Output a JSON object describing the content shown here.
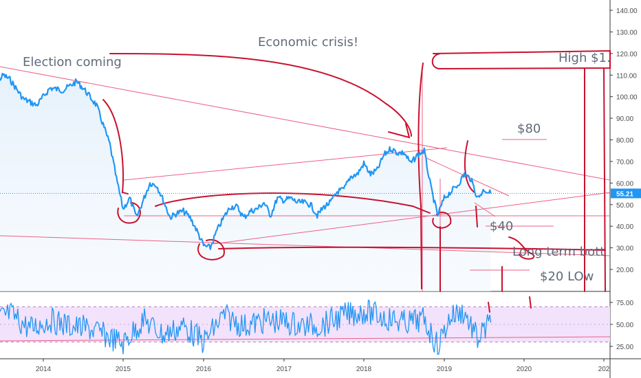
{
  "chart_data": [
    {
      "type": "line",
      "panel": "price",
      "ylim": [
        10,
        145
      ],
      "y_ticks": [
        "140.00",
        "130.00",
        "120.00",
        "110.00",
        "100.00",
        "90.00",
        "80.00",
        "70.00",
        "60.00",
        "50.00",
        "40.00",
        "30.00",
        "20.00"
      ],
      "x_ticks": [
        "2014",
        "2015",
        "2016",
        "2017",
        "2018",
        "2019",
        "2020",
        "202"
      ],
      "last_price_label": "55.21",
      "last_price": 55.21,
      "series": [
        {
          "color": "#2196f3",
          "points": [
            [
              "2013-05",
              103
            ],
            [
              "2013-07",
              110
            ],
            [
              "2013-08",
              108
            ],
            [
              "2013-10",
              99
            ],
            [
              "2013-12",
              96
            ],
            [
              "2014-02",
              104
            ],
            [
              "2014-04",
              103
            ],
            [
              "2014-06",
              107
            ],
            [
              "2014-07",
              104
            ],
            [
              "2014-09",
              96
            ],
            [
              "2014-10",
              87
            ],
            [
              "2014-11",
              78
            ],
            [
              "2014-12",
              62
            ],
            [
              "2015-01",
              48
            ],
            [
              "2015-02",
              53
            ],
            [
              "2015-03",
              44
            ],
            [
              "2015-04",
              52
            ],
            [
              "2015-05",
              60
            ],
            [
              "2015-06",
              59
            ],
            [
              "2015-07",
              52
            ],
            [
              "2015-08",
              44
            ],
            [
              "2015-09",
              46
            ],
            [
              "2015-10",
              47
            ],
            [
              "2015-11",
              44
            ],
            [
              "2015-12",
              38
            ],
            [
              "2016-01",
              31
            ],
            [
              "2016-02",
              30
            ],
            [
              "2016-03",
              38
            ],
            [
              "2016-04",
              44
            ],
            [
              "2016-05",
              49
            ],
            [
              "2016-06",
              49
            ],
            [
              "2016-07",
              44
            ],
            [
              "2016-08",
              47
            ],
            [
              "2016-09",
              48
            ],
            [
              "2016-10",
              51
            ],
            [
              "2016-11",
              45
            ],
            [
              "2016-12",
              53
            ],
            [
              "2017-01",
              52
            ],
            [
              "2017-02",
              53
            ],
            [
              "2017-03",
              51
            ],
            [
              "2017-04",
              51
            ],
            [
              "2017-05",
              50
            ],
            [
              "2017-06",
              45
            ],
            [
              "2017-07",
              49
            ],
            [
              "2017-08",
              51
            ],
            [
              "2017-09",
              56
            ],
            [
              "2017-10",
              57
            ],
            [
              "2017-11",
              63
            ],
            [
              "2017-12",
              64
            ],
            [
              "2018-01",
              69
            ],
            [
              "2018-02",
              64
            ],
            [
              "2018-03",
              66
            ],
            [
              "2018-04",
              73
            ],
            [
              "2018-05",
              76
            ],
            [
              "2018-06",
              74
            ],
            [
              "2018-07",
              74
            ],
            [
              "2018-08",
              69
            ],
            [
              "2018-09",
              73
            ],
            [
              "2018-10",
              75
            ],
            [
              "2018-11",
              58
            ],
            [
              "2018-12",
              45
            ],
            [
              "2019-01",
              53
            ],
            [
              "2019-02",
              56
            ],
            [
              "2019-03",
              59
            ],
            [
              "2019-04",
              64
            ],
            [
              "2019-05",
              62
            ],
            [
              "2019-06",
              53
            ],
            [
              "2019-07",
              57
            ],
            [
              "2019-08",
              55.21
            ]
          ]
        }
      ],
      "annotations": [
        {
          "text": "Election coming"
        },
        {
          "text": "Economic crisis!"
        },
        {
          "text": "High $1."
        },
        {
          "text": "$80"
        },
        {
          "text": "$40"
        },
        {
          "text": "Long term bott"
        },
        {
          "text": "$20 LOw"
        }
      ],
      "grid": false
    },
    {
      "type": "line",
      "panel": "oscillator",
      "ylim": [
        15,
        85
      ],
      "y_ticks": [
        "75.00",
        "50.00",
        "25.00"
      ],
      "band": [
        30,
        70
      ],
      "series": [
        {
          "color": "#2196f3",
          "points": [
            [
              "2013-05",
              52
            ],
            [
              "2013-08",
              62
            ],
            [
              "2013-11",
              45
            ],
            [
              "2014-02",
              55
            ],
            [
              "2014-05",
              48
            ],
            [
              "2014-08",
              45
            ],
            [
              "2014-11",
              35
            ],
            [
              "2015-01",
              28
            ],
            [
              "2015-04",
              55
            ],
            [
              "2015-07",
              38
            ],
            [
              "2015-10",
              48
            ],
            [
              "2016-01",
              30
            ],
            [
              "2016-04",
              60
            ],
            [
              "2016-07",
              48
            ],
            [
              "2016-10",
              54
            ],
            [
              "2017-01",
              53
            ],
            [
              "2017-04",
              48
            ],
            [
              "2017-07",
              50
            ],
            [
              "2017-10",
              60
            ],
            [
              "2018-01",
              65
            ],
            [
              "2018-04",
              58
            ],
            [
              "2018-07",
              52
            ],
            [
              "2018-10",
              55
            ],
            [
              "2018-12",
              25
            ],
            [
              "2019-02",
              60
            ],
            [
              "2019-04",
              64
            ],
            [
              "2019-06",
              33
            ],
            [
              "2019-08",
              52
            ]
          ]
        }
      ]
    }
  ]
}
